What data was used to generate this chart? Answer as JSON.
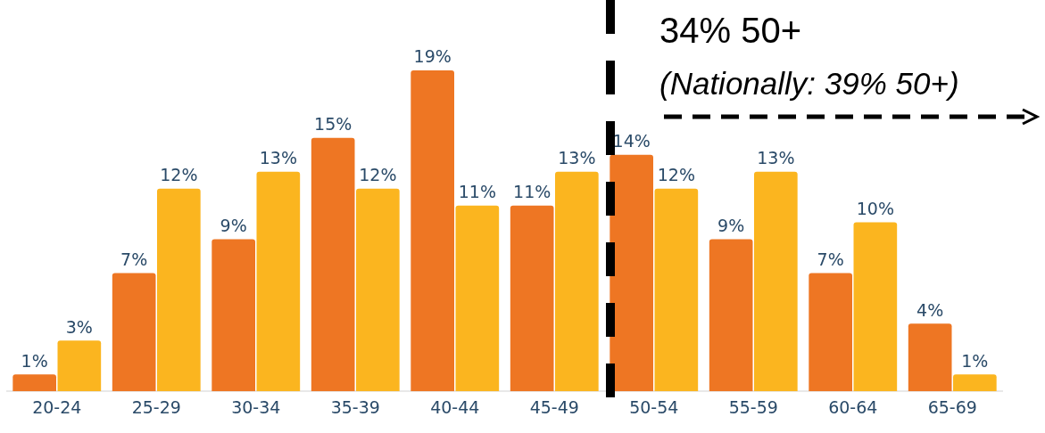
{
  "chart_data": {
    "type": "bar",
    "categories": [
      "20-24",
      "25-29",
      "30-34",
      "35-39",
      "40-44",
      "45-49",
      "50-54",
      "55-59",
      "60-64",
      "65-69"
    ],
    "series": [
      {
        "color": "#ee7623",
        "values": [
          1,
          7,
          9,
          15,
          19,
          11,
          14,
          9,
          7,
          4
        ],
        "value_labels": [
          "1%",
          "7%",
          "9%",
          "15%",
          "19%",
          "11%",
          "14%",
          "9%",
          "7%",
          "4%"
        ]
      },
      {
        "color": "#fbb51f",
        "values": [
          3,
          12,
          13,
          12,
          11,
          13,
          12,
          13,
          10,
          1
        ],
        "value_labels": [
          "3%",
          "12%",
          "13%",
          "12%",
          "11%",
          "13%",
          "12%",
          "13%",
          "10%",
          "1%"
        ]
      }
    ],
    "annotations": [
      "34% 50+",
      "(Nationally: 39% 50+)"
    ],
    "grid": false,
    "legend": false,
    "tick_labels": "x"
  }
}
